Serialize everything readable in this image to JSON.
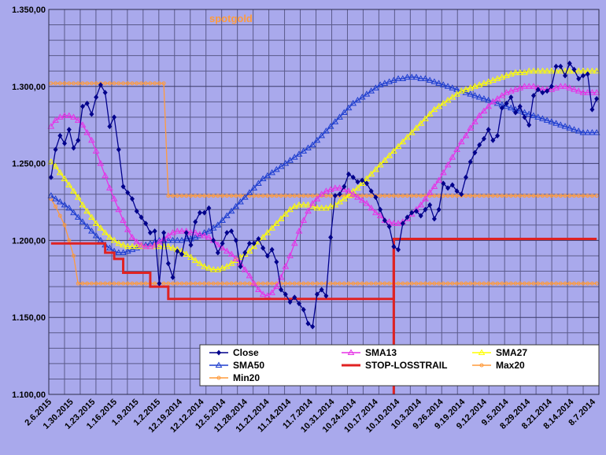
{
  "chart_data": {
    "type": "line",
    "title": "spotgold",
    "title_color": "#ff9b3c",
    "ylim": [
      1100,
      1350
    ],
    "y_ticks": [
      "1.100,00",
      "1.150,00",
      "1.200,00",
      "1.250,00",
      "1.300,00",
      "1.350,00"
    ],
    "x_ticks": [
      "2.6.2015",
      "1.30.2015",
      "1.23.2015",
      "1.16.2015",
      "1.9.2015",
      "1.2.2015",
      "12.19.2014",
      "12.12.2014",
      "12.5.2014",
      "11.28.2014",
      "11.21.2014",
      "11.14.2014",
      "11.7.2014",
      "10.31.2014",
      "10.24.2014",
      "10.17.2014",
      "10.10.2014",
      "10.3.2014",
      "9.26.2014",
      "9.19.2014",
      "9.12.2014",
      "9.5.2014",
      "8.29.2014",
      "8.21.2014",
      "8.14.2014",
      "8.7.2014"
    ],
    "x_direction": "reversed (newest on left)",
    "grid": true,
    "legend_placement": "bottom-right",
    "series": [
      {
        "name": "Close",
        "color": "#00008b",
        "marker": "diamond",
        "values": [
          1241,
          1259,
          1268,
          1263,
          1272,
          1260,
          1265,
          1287,
          1289,
          1282,
          1293,
          1301,
          1296,
          1274,
          1280,
          1259,
          1235,
          1231,
          1227,
          1219,
          1215,
          1211,
          1205,
          1206,
          1172,
          1205,
          1185,
          1176,
          1193,
          1191,
          1205,
          1197,
          1212,
          1218,
          1218,
          1221,
          1200,
          1192,
          1198,
          1205,
          1206,
          1200,
          1183,
          1192,
          1198,
          1198,
          1201,
          1195,
          1190,
          1194,
          1186,
          1168,
          1165,
          1160,
          1163,
          1159,
          1155,
          1146,
          1144,
          1165,
          1168,
          1164,
          1202,
          1229,
          1230,
          1235,
          1243,
          1241,
          1238,
          1239,
          1237,
          1232,
          1228,
          1220,
          1213,
          1209,
          1196,
          1194,
          1211,
          1215,
          1218,
          1219,
          1216,
          1220,
          1223,
          1214,
          1220,
          1237,
          1234,
          1236,
          1232,
          1230,
          1241,
          1251,
          1257,
          1262,
          1266,
          1272,
          1265,
          1268,
          1286,
          1289,
          1293,
          1283,
          1287,
          1280,
          1275,
          1294,
          1298,
          1296,
          1297,
          1300,
          1313,
          1313,
          1307,
          1315,
          1311,
          1305,
          1307,
          1308,
          1285,
          1292
        ]
      },
      {
        "name": "SMA13",
        "color": "#e633e6",
        "marker": "triangle",
        "values": [
          1274,
          1278,
          1280,
          1281,
          1281,
          1280,
          1278,
          1275,
          1270,
          1265,
          1258,
          1250,
          1242,
          1234,
          1227,
          1220,
          1213,
          1207,
          1202,
          1199,
          1197,
          1196,
          1196,
          1197,
          1199,
          1201,
          1203,
          1205,
          1206,
          1206,
          1206,
          1205,
          1205,
          1204,
          1203,
          1202,
          1200,
          1197,
          1195,
          1193,
          1191,
          1188,
          1185,
          1181,
          1177,
          1172,
          1168,
          1165,
          1164,
          1166,
          1170,
          1176,
          1183,
          1190,
          1198,
          1206,
          1213,
          1219,
          1224,
          1227,
          1230,
          1232,
          1233,
          1234,
          1234,
          1233,
          1232,
          1230,
          1228,
          1226,
          1224,
          1221,
          1218,
          1216,
          1213,
          1212,
          1211,
          1211,
          1212,
          1214,
          1217,
          1220,
          1223,
          1227,
          1231,
          1235,
          1239,
          1244,
          1249,
          1254,
          1259,
          1264,
          1268,
          1273,
          1277,
          1281,
          1284,
          1287,
          1290,
          1292,
          1294,
          1296,
          1297,
          1298,
          1299,
          1300,
          1300,
          1300,
          1299,
          1298,
          1298,
          1298,
          1299,
          1300,
          1300,
          1299,
          1298,
          1297,
          1296,
          1296,
          1296,
          1296
        ]
      },
      {
        "name": "SMA27",
        "color": "#ffff00",
        "marker": "triangle",
        "values": [
          1251,
          1248,
          1244,
          1240,
          1236,
          1232,
          1228,
          1223,
          1219,
          1215,
          1211,
          1208,
          1205,
          1202,
          1200,
          1198,
          1197,
          1196,
          1196,
          1196,
          1196,
          1196,
          1196,
          1196,
          1196,
          1196,
          1196,
          1195,
          1194,
          1193,
          1191,
          1189,
          1187,
          1185,
          1183,
          1182,
          1181,
          1181,
          1182,
          1183,
          1185,
          1187,
          1189,
          1191,
          1193,
          1196,
          1199,
          1202,
          1205,
          1208,
          1211,
          1214,
          1217,
          1220,
          1222,
          1223,
          1223,
          1223,
          1222,
          1221,
          1221,
          1221,
          1222,
          1223,
          1225,
          1227,
          1229,
          1232,
          1234,
          1237,
          1240,
          1243,
          1246,
          1249,
          1252,
          1255,
          1258,
          1261,
          1264,
          1267,
          1270,
          1273,
          1276,
          1279,
          1282,
          1285,
          1287,
          1289,
          1291,
          1293,
          1295,
          1297,
          1298,
          1299,
          1300,
          1301,
          1302,
          1303,
          1304,
          1305,
          1306,
          1307,
          1308,
          1309,
          1309,
          1309,
          1310,
          1310,
          1310,
          1310,
          1310,
          1310,
          1310,
          1310,
          1310,
          1310,
          1310,
          1310,
          1310,
          1310,
          1310,
          1310
        ]
      },
      {
        "name": "SMA50",
        "color": "#1f3fcf",
        "marker": "triangle",
        "values": [
          1229,
          1227,
          1225,
          1223,
          1221,
          1218,
          1215,
          1212,
          1209,
          1206,
          1203,
          1200,
          1197,
          1195,
          1193,
          1192,
          1192,
          1193,
          1194,
          1195,
          1196,
          1197,
          1198,
          1199,
          1200,
          1200,
          1200,
          1200,
          1200,
          1200,
          1201,
          1201,
          1202,
          1203,
          1205,
          1206,
          1208,
          1210,
          1213,
          1216,
          1219,
          1222,
          1225,
          1228,
          1231,
          1234,
          1237,
          1240,
          1242,
          1244,
          1246,
          1248,
          1250,
          1252,
          1254,
          1256,
          1258,
          1260,
          1262,
          1265,
          1268,
          1271,
          1274,
          1277,
          1280,
          1283,
          1286,
          1289,
          1291,
          1293,
          1295,
          1297,
          1299,
          1301,
          1302,
          1303,
          1304,
          1305,
          1305,
          1306,
          1306,
          1306,
          1305,
          1305,
          1304,
          1303,
          1302,
          1301,
          1300,
          1299,
          1298,
          1297,
          1296,
          1295,
          1294,
          1293,
          1292,
          1291,
          1290,
          1289,
          1288,
          1287,
          1286,
          1285,
          1284,
          1283,
          1282,
          1281,
          1280,
          1279,
          1278,
          1277,
          1276,
          1275,
          1274,
          1273,
          1272,
          1271,
          1270,
          1270,
          1270,
          1270
        ]
      },
      {
        "name": "STOP-LOSSTRAIL",
        "color": "#e02222",
        "marker": "none",
        "values": [
          1198,
          1198,
          1198,
          1198,
          1198,
          1198,
          1198,
          1198,
          1198,
          1198,
          1198,
          1198,
          1192,
          1192,
          1188,
          1188,
          1179,
          1179,
          1179,
          1179,
          1179,
          1179,
          1170,
          1170,
          1170,
          1170,
          1162,
          1162,
          1162,
          1162,
          1162,
          1162,
          1162,
          1162,
          1162,
          1162,
          1162,
          1162,
          1162,
          1162,
          1162,
          1162,
          1162,
          1162,
          1162,
          1162,
          1162,
          1162,
          1162,
          1162,
          1162,
          1162,
          1162,
          1162,
          1162,
          1162,
          1162,
          1162,
          1162,
          1162,
          1162,
          1162,
          1162,
          1162,
          1162,
          1162,
          1162,
          1162,
          1162,
          1162,
          1162,
          1162,
          1162,
          1162,
          1162,
          1162,
          1201,
          1201,
          1201,
          1201,
          1201,
          1201,
          1201,
          1201,
          1201,
          1201,
          1201,
          1201,
          1201,
          1201,
          1201,
          1201,
          1201,
          1201,
          1201,
          1201,
          1201,
          1201,
          1201,
          1201,
          1201,
          1201,
          1201,
          1201,
          1201,
          1201,
          1201,
          1201,
          1201,
          1201,
          1201,
          1201,
          1201,
          1201,
          1201,
          1201,
          1201,
          1201,
          1201,
          1201,
          1201,
          1201
        ]
      },
      {
        "name": "Max20",
        "color": "#ff9b3c",
        "marker": "circle",
        "values": [
          1302,
          1302,
          1302,
          1302,
          1302,
          1302,
          1302,
          1302,
          1302,
          1302,
          1302,
          1302,
          1302,
          1302,
          1302,
          1302,
          1302,
          1302,
          1302,
          1302,
          1302,
          1302,
          1302,
          1302,
          1302,
          1302,
          1229,
          1229,
          1229,
          1229,
          1229,
          1229,
          1229,
          1229,
          1229,
          1229,
          1229,
          1229,
          1229,
          1229,
          1229,
          1229,
          1229,
          1229,
          1229,
          1229,
          1229,
          1229,
          1229,
          1229,
          1229,
          1229,
          1229,
          1229,
          1229,
          1229,
          1229,
          1229,
          1229,
          1229,
          1229,
          1229,
          1229,
          1229,
          1229,
          1229,
          1229,
          1229,
          1229,
          1229,
          1229,
          1229,
          1229,
          1229,
          1229,
          1229,
          1229,
          1229,
          1229,
          1229,
          1229,
          1229,
          1229,
          1229,
          1229,
          1229,
          1229,
          1229,
          1229,
          1229,
          1229,
          1229,
          1229,
          1229,
          1229,
          1229,
          1229,
          1229,
          1229,
          1229,
          1229,
          1229,
          1229,
          1229,
          1229,
          1229,
          1229,
          1229,
          1229,
          1229,
          1229,
          1229,
          1229,
          1229,
          1229,
          1229,
          1229,
          1229,
          1229,
          1229,
          1229,
          1229
        ]
      },
      {
        "name": "Min20",
        "color": "#ff9b3c",
        "marker": "circle",
        "values": [
          1227,
          1222,
          1216,
          1210,
          1200,
          1190,
          1172,
          1172,
          1172,
          1172,
          1172,
          1172,
          1172,
          1172,
          1172,
          1172,
          1172,
          1172,
          1172,
          1172,
          1172,
          1172,
          1172,
          1172,
          1172,
          1172,
          1172,
          1172,
          1172,
          1172,
          1172,
          1172,
          1172,
          1172,
          1172,
          1172,
          1172,
          1172,
          1172,
          1172,
          1172,
          1172,
          1172,
          1172,
          1172,
          1172,
          1172,
          1172,
          1172,
          1172,
          1172,
          1172,
          1172,
          1172,
          1172,
          1172,
          1172,
          1172,
          1172,
          1172,
          1172,
          1172,
          1172,
          1172,
          1172,
          1172,
          1172,
          1172,
          1172,
          1172,
          1172,
          1172,
          1172,
          1172,
          1172,
          1172,
          1172,
          1172,
          1172,
          1172,
          1172,
          1172,
          1172,
          1172,
          1172,
          1172,
          1172,
          1172,
          1172,
          1172,
          1172,
          1172,
          1172,
          1172,
          1172,
          1172,
          1172,
          1172,
          1172,
          1172,
          1172,
          1172,
          1172,
          1172,
          1172,
          1172,
          1172,
          1172,
          1172,
          1172,
          1172,
          1172,
          1172,
          1172,
          1172,
          1172,
          1172,
          1172,
          1172,
          1172,
          1172,
          1172
        ]
      }
    ],
    "legend": [
      {
        "label": "Close",
        "color": "#00008b",
        "marker": "diamond"
      },
      {
        "label": "SMA13",
        "color": "#e633e6",
        "marker": "triangle"
      },
      {
        "label": "SMA27",
        "color": "#ffff00",
        "marker": "triangle"
      },
      {
        "label": "SMA50",
        "color": "#1f3fcf",
        "marker": "triangle"
      },
      {
        "label": "STOP-LOSSTRAIL",
        "color": "#e02222",
        "marker": "none"
      },
      {
        "label": "Max20",
        "color": "#ff9b3c",
        "marker": "circle"
      },
      {
        "label": "Min20",
        "color": "#ff9b3c",
        "marker": "circle"
      }
    ]
  }
}
